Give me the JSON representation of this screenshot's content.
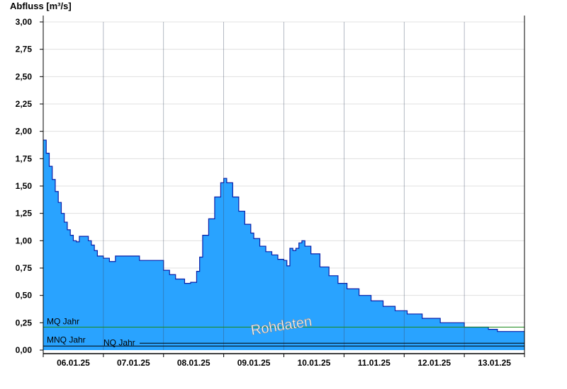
{
  "colors": {
    "area_fill": "#29a3ff",
    "area_line": "#0a1fa8",
    "mq_line": "#1a8a1a",
    "nq_line": "#000000",
    "grid": "#e0e0e0"
  },
  "chart_data": {
    "type": "area",
    "ylabel": "Abfluss [m³/s]",
    "ylim": [
      0,
      3.0
    ],
    "y_ticks": [
      "0,00",
      "0,25",
      "0,50",
      "0,75",
      "1,00",
      "1,25",
      "1,50",
      "1,75",
      "2,00",
      "2,25",
      "2,50",
      "2,75",
      "3,00"
    ],
    "x_ticks": [
      "06.01.25",
      "07.01.25",
      "08.01.25",
      "09.01.25",
      "10.01.25",
      "11.01.25",
      "12.01.25",
      "13.01.25"
    ],
    "x_range_days": [
      0,
      8
    ],
    "grid": true,
    "watermark": "Rohdaten",
    "reference_lines": [
      {
        "label": "MQ Jahr",
        "value": 0.21,
        "color": "#1a8a1a"
      },
      {
        "label": "MNQ Jahr",
        "value": 0.05,
        "color": "#000000"
      },
      {
        "label": "NQ Jahr",
        "value": 0.05,
        "color": "#000000"
      }
    ],
    "series": [
      {
        "points": [
          [
            0.0,
            1.92
          ],
          [
            0.05,
            1.8
          ],
          [
            0.1,
            1.68
          ],
          [
            0.15,
            1.56
          ],
          [
            0.2,
            1.45
          ],
          [
            0.25,
            1.35
          ],
          [
            0.3,
            1.25
          ],
          [
            0.35,
            1.17
          ],
          [
            0.4,
            1.1
          ],
          [
            0.45,
            1.05
          ],
          [
            0.5,
            1.0
          ],
          [
            0.55,
            0.99
          ],
          [
            0.6,
            1.04
          ],
          [
            0.7,
            1.04
          ],
          [
            0.75,
            1.0
          ],
          [
            0.8,
            0.96
          ],
          [
            0.85,
            0.91
          ],
          [
            0.9,
            0.86
          ],
          [
            1.0,
            0.84
          ],
          [
            1.1,
            0.81
          ],
          [
            1.2,
            0.86
          ],
          [
            1.45,
            0.86
          ],
          [
            1.6,
            0.82
          ],
          [
            1.9,
            0.82
          ],
          [
            2.0,
            0.73
          ],
          [
            2.1,
            0.69
          ],
          [
            2.2,
            0.65
          ],
          [
            2.35,
            0.61
          ],
          [
            2.45,
            0.62
          ],
          [
            2.55,
            0.72
          ],
          [
            2.6,
            0.85
          ],
          [
            2.65,
            1.05
          ],
          [
            2.75,
            1.2
          ],
          [
            2.85,
            1.4
          ],
          [
            2.95,
            1.53
          ],
          [
            3.0,
            1.57
          ],
          [
            3.05,
            1.53
          ],
          [
            3.15,
            1.4
          ],
          [
            3.25,
            1.27
          ],
          [
            3.35,
            1.15
          ],
          [
            3.45,
            1.07
          ],
          [
            3.5,
            1.02
          ],
          [
            3.6,
            0.95
          ],
          [
            3.7,
            0.9
          ],
          [
            3.8,
            0.87
          ],
          [
            3.9,
            0.83
          ],
          [
            4.0,
            0.82
          ],
          [
            4.05,
            0.77
          ],
          [
            4.1,
            0.93
          ],
          [
            4.15,
            0.91
          ],
          [
            4.2,
            0.93
          ],
          [
            4.25,
            0.98
          ],
          [
            4.3,
            1.0
          ],
          [
            4.35,
            0.95
          ],
          [
            4.45,
            0.88
          ],
          [
            4.6,
            0.76
          ],
          [
            4.75,
            0.68
          ],
          [
            4.9,
            0.61
          ],
          [
            5.05,
            0.56
          ],
          [
            5.25,
            0.5
          ],
          [
            5.45,
            0.45
          ],
          [
            5.65,
            0.4
          ],
          [
            5.85,
            0.36
          ],
          [
            6.05,
            0.33
          ],
          [
            6.3,
            0.29
          ],
          [
            6.6,
            0.25
          ],
          [
            7.0,
            0.21
          ],
          [
            7.4,
            0.19
          ],
          [
            7.55,
            0.17
          ],
          [
            8.0,
            0.17
          ]
        ]
      }
    ]
  }
}
